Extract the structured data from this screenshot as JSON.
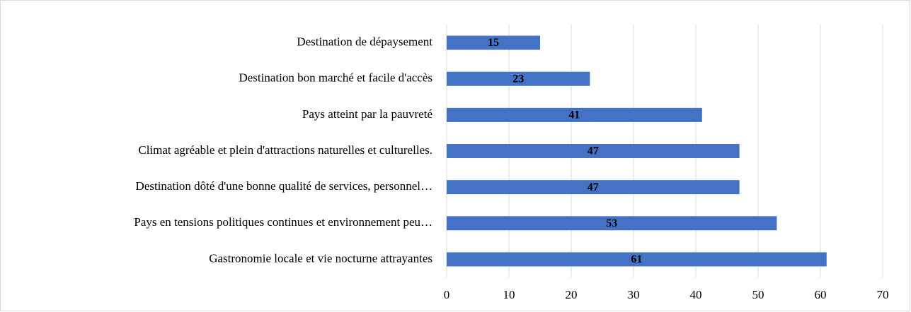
{
  "chart_data": {
    "type": "barh",
    "categories": [
      "Destination de dépaysement",
      "Destination bon marché et facile d'accès",
      "Pays atteint par la pauvreté",
      "Climat agréable et plein d'attractions naturelles et culturelles.",
      "Destination dôté d'une bonne qualité de services, personnel…",
      "Pays en tensions politiques continues et environnement peu…",
      "Gastronomie locale et vie nocturne attrayantes"
    ],
    "values": [
      15,
      23,
      41,
      47,
      47,
      53,
      61
    ],
    "color": "#4472c4",
    "xlim": [
      0,
      70
    ],
    "xticks": [
      0,
      10,
      20,
      30,
      40,
      50,
      60,
      70
    ],
    "grid": true
  }
}
